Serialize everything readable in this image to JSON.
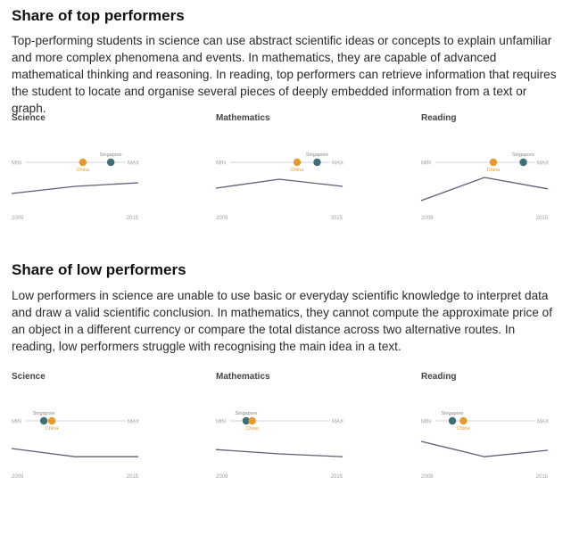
{
  "colors": {
    "singapore": "#3d6f74",
    "china": "#e49a2f",
    "line": "#5b5f75",
    "track": "#cfd3dc",
    "axis_text": "#9aa0a6"
  },
  "sections": [
    {
      "heading": "Share of top performers",
      "description": "Top-performing students in science can use abstract scientific ideas or concepts to explain unfamiliar and more complex phenomena and events. In mathematics, they are capable of advanced mathematical thinking and reasoning. In reading, top performers can retrieve information that requires the student to locate and organise several pieces of deeply embedded information from a text or graph."
    },
    {
      "heading": "Share of low performers",
      "description": "Low performers in science are unable to use basic or everyday scientific knowledge to interpret data and draw a valid scientific conclusion. In mathematics, they cannot compute the approximate price of an object in a different currency or compare the total distance across two alternative routes. In reading, low performers struggle with recognising the main idea in a text."
    }
  ],
  "chart_data": [
    {
      "type": "line",
      "section": "top",
      "title": "Science",
      "range_labels": {
        "min": "MIN",
        "max": "MAX"
      },
      "markers": [
        {
          "name": "Singapore",
          "position": 0.85
        },
        {
          "name": "China",
          "position": 0.57
        }
      ],
      "x": [
        "2009",
        "2012",
        "2015"
      ],
      "values": [
        0.25,
        0.45,
        0.55
      ],
      "xlabels": [
        "2009",
        "2015"
      ]
    },
    {
      "type": "line",
      "section": "top",
      "title": "Mathematics",
      "range_labels": {
        "min": "MIN",
        "max": "MAX"
      },
      "markers": [
        {
          "name": "Singapore",
          "position": 0.87
        },
        {
          "name": "China",
          "position": 0.67
        }
      ],
      "x": [
        "2009",
        "2012",
        "2015"
      ],
      "values": [
        0.4,
        0.65,
        0.45
      ],
      "xlabels": [
        "2009",
        "2015"
      ]
    },
    {
      "type": "line",
      "section": "top",
      "title": "Reading",
      "range_labels": {
        "min": "MIN",
        "max": "MAX"
      },
      "markers": [
        {
          "name": "Singapore",
          "position": 0.88
        },
        {
          "name": "China",
          "position": 0.58
        }
      ],
      "x": [
        "2009",
        "2012",
        "2015"
      ],
      "values": [
        0.05,
        0.7,
        0.38
      ],
      "xlabels": [
        "2009",
        "2015"
      ]
    },
    {
      "type": "line",
      "section": "low",
      "title": "Science",
      "range_labels": {
        "min": "MIN",
        "max": "MAX"
      },
      "markers": [
        {
          "name": "Singapore",
          "position": 0.18
        },
        {
          "name": "China",
          "position": 0.26
        }
      ],
      "x": [
        "2009",
        "2012",
        "2015"
      ],
      "values": [
        0.35,
        0.12,
        0.12
      ],
      "xlabels": [
        "2009",
        "2015"
      ]
    },
    {
      "type": "line",
      "section": "low",
      "title": "Mathematics",
      "range_labels": {
        "min": "MIN",
        "max": "MAX"
      },
      "markers": [
        {
          "name": "Singapore",
          "position": 0.16
        },
        {
          "name": "China",
          "position": 0.22
        }
      ],
      "x": [
        "2009",
        "2012",
        "2015"
      ],
      "values": [
        0.32,
        0.2,
        0.12
      ],
      "xlabels": [
        "2009",
        "2015"
      ]
    },
    {
      "type": "line",
      "section": "low",
      "title": "Reading",
      "range_labels": {
        "min": "MIN",
        "max": "MAX"
      },
      "markers": [
        {
          "name": "Singapore",
          "position": 0.17
        },
        {
          "name": "China",
          "position": 0.28
        }
      ],
      "x": [
        "2009",
        "2012",
        "2015"
      ],
      "values": [
        0.55,
        0.12,
        0.3
      ],
      "xlabels": [
        "2009",
        "2015"
      ]
    }
  ]
}
